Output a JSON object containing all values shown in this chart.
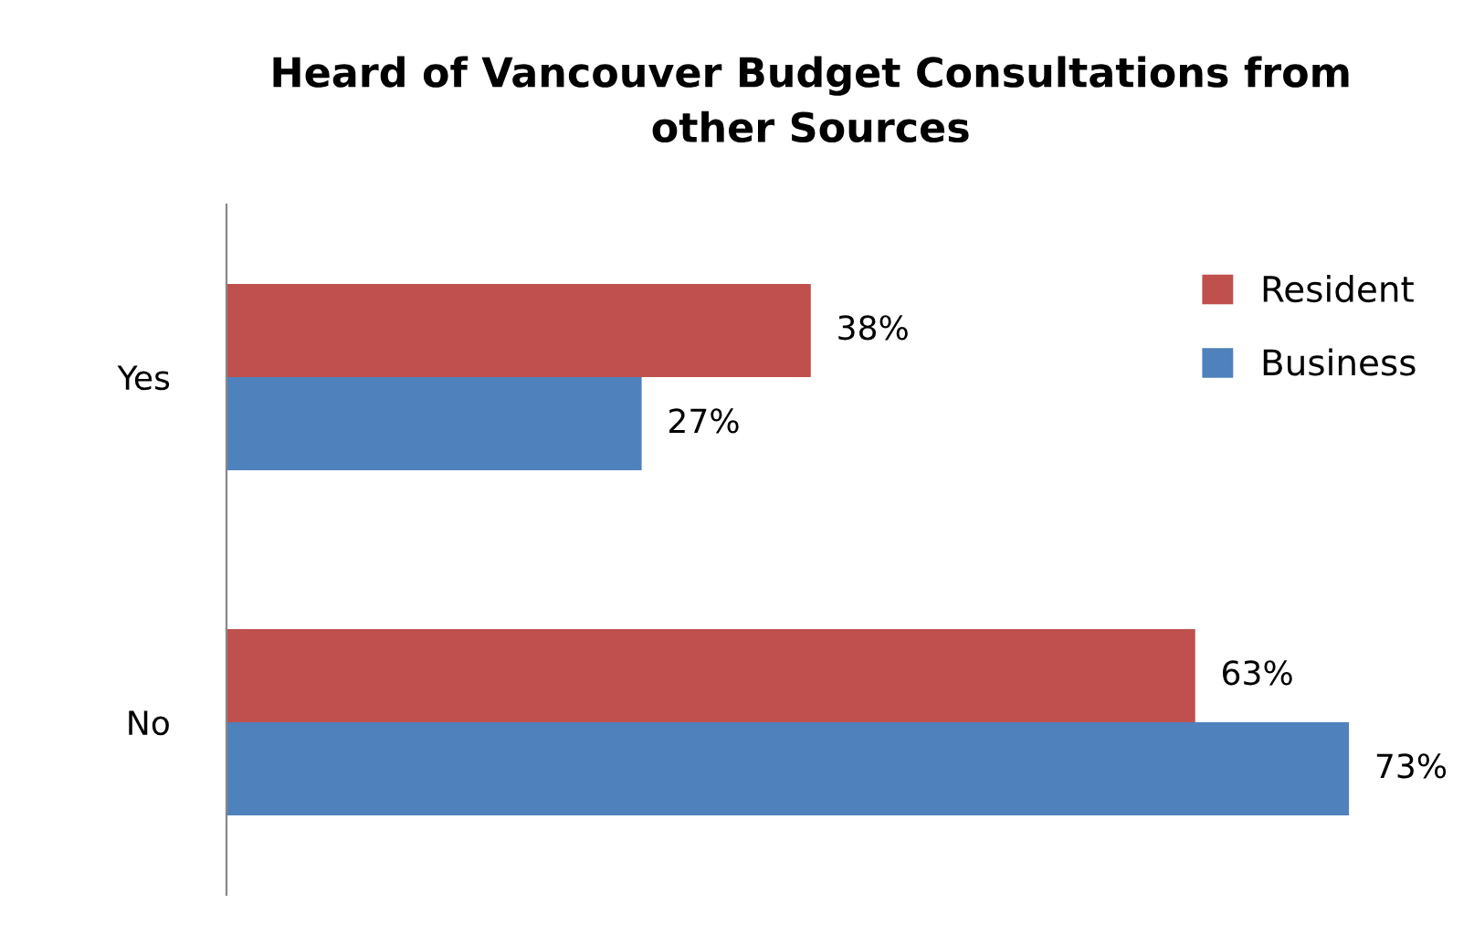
{
  "chart_data": {
    "type": "bar",
    "orientation": "horizontal",
    "title": "Heard of Vancouver Budget Consultations from\nother Sources",
    "categories": [
      "Yes",
      "No"
    ],
    "series": [
      {
        "name": "Resident",
        "color": "#c0504d",
        "values": [
          38,
          63
        ],
        "value_labels": [
          "38%",
          "63%"
        ]
      },
      {
        "name": "Business",
        "color": "#4f81bd",
        "values": [
          27,
          73
        ],
        "value_labels": [
          "27%",
          "73%"
        ]
      }
    ],
    "legend": "right",
    "grid": false,
    "tick_labels": "y"
  }
}
